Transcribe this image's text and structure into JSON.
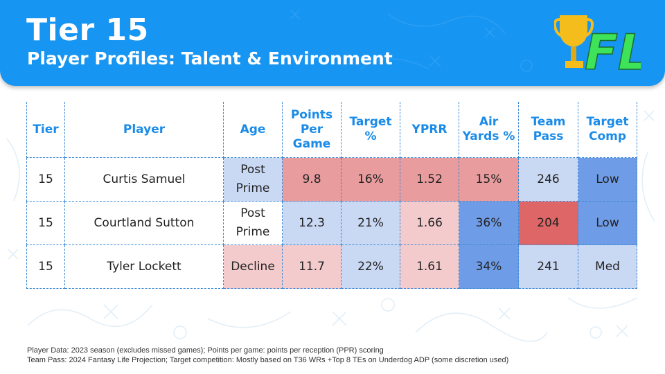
{
  "header": {
    "title": "Tier 15",
    "subtitle": "Player Profiles: Talent & Environment",
    "logo_text": "FL",
    "brand_color": "#1795f2",
    "logo_green": "#3ee35a",
    "trophy_gold": "#f4bd1c"
  },
  "table": {
    "headers": {
      "tier": "Tier",
      "player": "Player",
      "age": "Age",
      "ppg": [
        "Points",
        "Per",
        "Game"
      ],
      "target": [
        "Target",
        "%"
      ],
      "yprr": "YPRR",
      "air": [
        "Air",
        "Yards %"
      ],
      "team": [
        "Team",
        "Pass"
      ],
      "comp": [
        "Target",
        "Comp"
      ]
    },
    "rows": [
      {
        "tier": "15",
        "player": "Curtis Samuel",
        "age": [
          "Post",
          "Prime"
        ],
        "ppg": "9.8",
        "target": "16%",
        "yprr": "1.52",
        "air": "15%",
        "team": "246",
        "comp": "Low"
      },
      {
        "tier": "15",
        "player": "Courtland Sutton",
        "age": [
          "Post",
          "Prime"
        ],
        "ppg": "12.3",
        "target": "21%",
        "yprr": "1.66",
        "air": "36%",
        "team": "204",
        "comp": "Low"
      },
      {
        "tier": "15",
        "player": "Tyler Lockett",
        "age": "Decline",
        "ppg": "11.7",
        "target": "22%",
        "yprr": "1.61",
        "air": "34%",
        "team": "241",
        "comp": "Med"
      }
    ],
    "colors": {
      "light_blue": "#c9d8f3",
      "medium_blue": "#6f9ce6",
      "light_red": "#f3cbcd",
      "medium_red": "#e89c9e",
      "dark_red": "#de6666"
    }
  },
  "footnotes": [
    "Player Data: 2023 season (excludes missed games); Points per game: points per reception (PPR) scoring",
    "Team Pass: 2024 Fantasy Life Projection; Target competition: Mostly based on T36 WRs +Top 8 TEs on Underdog ADP (some discretion used)"
  ]
}
